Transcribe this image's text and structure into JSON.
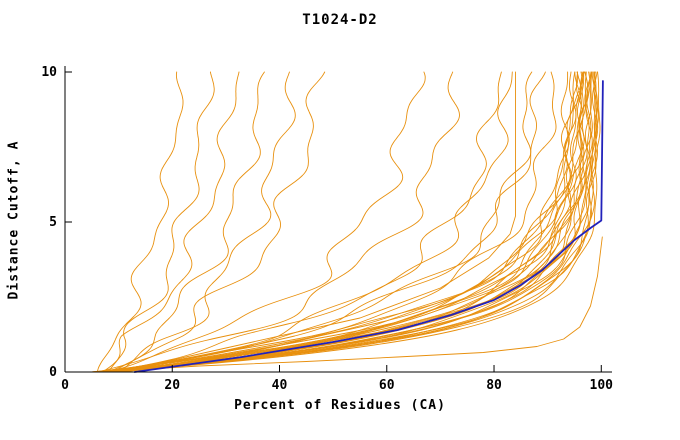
{
  "chart_data": {
    "type": "line",
    "title": "T1024-D2",
    "xlabel": "Percent of Residues (CA)",
    "ylabel": "Distance Cutoff, A",
    "xlim": [
      0,
      102
    ],
    "ylim": [
      0,
      10
    ],
    "xticks": [
      0,
      20,
      40,
      60,
      80,
      100
    ],
    "yticks": [
      0,
      5,
      10
    ],
    "grid": false,
    "legend": null,
    "colors": {
      "model": "#e8900e",
      "highlight": "#2222bb",
      "axis": "#000000",
      "background": "#ffffff"
    },
    "series_description": "Many model cumulative-accuracy curves (orange) plus one highlighted curve (blue); x = percent of CA residues under distance cutoff, y = distance cutoff in Angstroms.",
    "param_format": "[x_at_y0, x_asymptote, rate_k, wiggle_amp] with x(y)=xmax-(xmax-x0)*exp(-k*y)",
    "param_curves": [
      [
        5,
        97,
        0.7,
        1.2
      ],
      [
        6,
        98,
        0.75,
        1.0
      ],
      [
        6,
        96,
        0.65,
        1.4
      ],
      [
        7,
        99,
        0.8,
        0.9
      ],
      [
        7,
        95,
        0.6,
        1.5
      ],
      [
        8,
        98,
        0.72,
        1.1
      ],
      [
        5,
        94,
        0.58,
        1.6
      ],
      [
        6,
        97,
        0.68,
        1.2
      ],
      [
        7,
        96,
        0.62,
        1.3
      ],
      [
        8,
        99,
        0.78,
        0.8
      ],
      [
        9,
        97,
        0.66,
        1.2
      ],
      [
        6,
        95,
        0.56,
        1.5
      ],
      [
        7,
        98,
        0.74,
        1.0
      ],
      [
        8,
        96,
        0.6,
        1.4
      ],
      [
        5,
        99,
        0.82,
        0.8
      ],
      [
        9,
        98,
        0.7,
        1.1
      ],
      [
        10,
        97,
        0.64,
        1.3
      ],
      [
        6,
        99,
        0.85,
        0.7
      ],
      [
        7,
        97,
        0.58,
        1.4
      ],
      [
        8,
        95,
        0.54,
        1.6
      ],
      [
        9,
        99,
        0.76,
        0.9
      ],
      [
        10,
        98,
        0.62,
        1.2
      ],
      [
        6,
        96,
        0.52,
        1.6
      ],
      [
        7,
        99.5,
        0.88,
        0.6
      ],
      [
        8,
        97,
        0.57,
        1.4
      ],
      [
        9,
        96,
        0.5,
        1.7
      ],
      [
        10,
        99,
        0.68,
        1.0
      ],
      [
        7,
        88,
        0.45,
        2.5
      ],
      [
        8,
        82,
        0.4,
        2.8
      ],
      [
        6,
        75,
        0.35,
        3.0
      ],
      [
        9,
        90,
        0.42,
        2.4
      ],
      [
        8,
        68,
        0.32,
        3.2
      ],
      [
        7,
        92,
        0.48,
        2.2
      ],
      [
        10,
        85,
        0.38,
        2.6
      ],
      [
        8,
        30,
        0.2,
        2.0
      ],
      [
        6,
        25,
        0.18,
        1.8
      ],
      [
        9,
        40,
        0.24,
        2.4
      ],
      [
        7,
        35,
        0.22,
        2.2
      ],
      [
        10,
        45,
        0.26,
        2.6
      ],
      [
        8,
        50,
        0.28,
        2.8
      ]
    ],
    "point_curves": [
      {
        "color": "model",
        "width": 0.9,
        "pts": [
          [
            7,
            0
          ],
          [
            25,
            0.2
          ],
          [
            45,
            0.35
          ],
          [
            62,
            0.5
          ],
          [
            78,
            0.65
          ],
          [
            88,
            0.85
          ],
          [
            93,
            1.1
          ],
          [
            96,
            1.5
          ],
          [
            98,
            2.2
          ],
          [
            99.3,
            3.2
          ],
          [
            100.2,
            4.5
          ]
        ]
      },
      {
        "color": "model",
        "width": 0.9,
        "pts": [
          [
            10,
            0
          ],
          [
            30,
            0.8
          ],
          [
            55,
            1.8
          ],
          [
            70,
            2.8
          ],
          [
            79,
            3.8
          ],
          [
            83,
            4.6
          ],
          [
            84,
            5.2
          ],
          [
            84,
            10
          ]
        ]
      },
      {
        "color": "highlight",
        "width": 1.8,
        "pts": [
          [
            13,
            0
          ],
          [
            33,
            0.5
          ],
          [
            50,
            1.0
          ],
          [
            62,
            1.4
          ],
          [
            72,
            1.9
          ],
          [
            80,
            2.4
          ],
          [
            85,
            2.9
          ],
          [
            89,
            3.4
          ],
          [
            92,
            3.9
          ],
          [
            95,
            4.4
          ],
          [
            98,
            4.8
          ],
          [
            100,
            5.05
          ],
          [
            100.3,
            9.7
          ]
        ]
      }
    ]
  }
}
